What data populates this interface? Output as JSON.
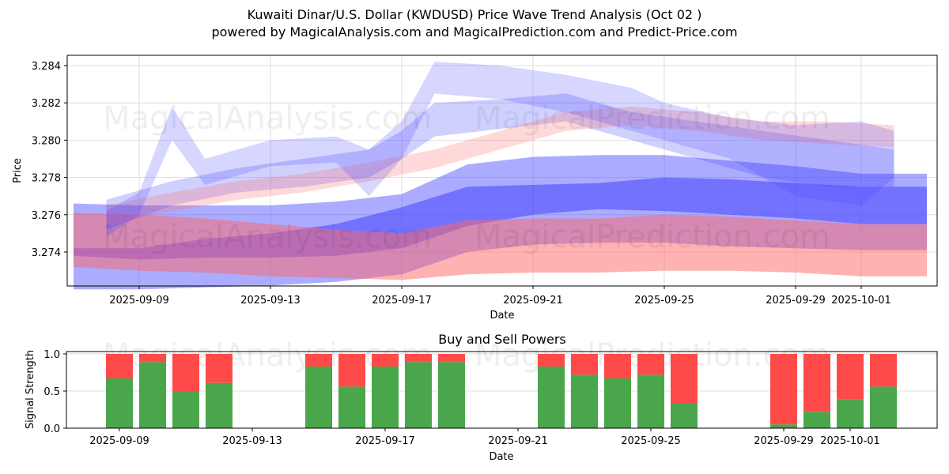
{
  "header": {
    "title": "Kuwaiti Dinar/U.S. Dollar (KWDUSD) Price Wave Trend Analysis (Oct 02 )",
    "subtitle": "powered by MagicalAnalysis.com and MagicalPrediction.com and Predict-Price.com"
  },
  "watermarks": [
    "MagicalAnalysis.com",
    "MagicalPrediction.com"
  ],
  "chart_data": [
    {
      "type": "area",
      "title": "",
      "xlabel": "Date",
      "ylabel": "Price",
      "xlim": [
        "2025-09-06.8",
        "2025-10-03.3"
      ],
      "ylim": [
        3.2722,
        3.2846
      ],
      "grid": true,
      "xticks": [
        "2025-09-09",
        "2025-09-13",
        "2025-09-17",
        "2025-09-21",
        "2025-09-25",
        "2025-09-29",
        "2025-10-01"
      ],
      "yticks": [
        "3.274",
        "3.276",
        "3.278",
        "3.280",
        "3.282",
        "3.284"
      ],
      "colors": {
        "blue": "#4444ff",
        "red": "#ff6666"
      },
      "bands": [
        {
          "name": "blue-wide-lower",
          "color": "blue",
          "opacity": 0.45,
          "x": [
            "2025-09-07",
            "2025-09-09",
            "2025-09-11",
            "2025-09-13",
            "2025-09-15",
            "2025-09-17",
            "2025-09-19",
            "2025-09-21",
            "2025-09-23",
            "2025-09-25",
            "2025-09-27",
            "2025-09-29",
            "2025-10-01",
            "2025-10-03"
          ],
          "upper": [
            3.2766,
            3.2765,
            3.2765,
            3.2765,
            3.2767,
            3.2771,
            3.2787,
            3.2791,
            3.2792,
            3.2792,
            3.2789,
            3.2786,
            3.2782,
            3.2782
          ],
          "lower": [
            3.272,
            3.272,
            3.2721,
            3.2722,
            3.2724,
            3.2728,
            3.274,
            3.2744,
            3.2745,
            3.2745,
            3.2743,
            3.2742,
            3.2741,
            3.2741
          ]
        },
        {
          "name": "blue-core",
          "color": "blue",
          "opacity": 0.55,
          "x": [
            "2025-09-07",
            "2025-09-09",
            "2025-09-11",
            "2025-09-13",
            "2025-09-15",
            "2025-09-17",
            "2025-09-19",
            "2025-09-21",
            "2025-09-23",
            "2025-09-25",
            "2025-09-27",
            "2025-09-29",
            "2025-10-01",
            "2025-10-03"
          ],
          "upper": [
            3.2742,
            3.2742,
            3.2747,
            3.275,
            3.2755,
            3.2764,
            3.2775,
            3.2776,
            3.2777,
            3.278,
            3.2779,
            3.2777,
            3.2775,
            3.2775
          ],
          "lower": [
            3.2738,
            3.2736,
            3.2737,
            3.2737,
            3.2738,
            3.2742,
            3.2754,
            3.276,
            3.2763,
            3.2762,
            3.276,
            3.2758,
            3.2755,
            3.2755
          ]
        },
        {
          "name": "red-wide-lower",
          "color": "red",
          "opacity": 0.5,
          "x": [
            "2025-09-07",
            "2025-09-09",
            "2025-09-11",
            "2025-09-13",
            "2025-09-15",
            "2025-09-17",
            "2025-09-19",
            "2025-09-21",
            "2025-09-23",
            "2025-09-25",
            "2025-09-27",
            "2025-09-29",
            "2025-10-01",
            "2025-10-03"
          ],
          "upper": [
            3.2761,
            3.276,
            3.2758,
            3.2755,
            3.2752,
            3.275,
            3.2757,
            3.2758,
            3.2758,
            3.276,
            3.2759,
            3.2757,
            3.2755,
            3.2755
          ],
          "lower": [
            3.2732,
            3.273,
            3.2729,
            3.2727,
            3.2726,
            3.2725,
            3.2728,
            3.2729,
            3.2729,
            3.273,
            3.273,
            3.2729,
            3.2727,
            3.2727
          ]
        },
        {
          "name": "blue-stream-mid",
          "color": "blue",
          "opacity": 0.25,
          "x": [
            "2025-09-08",
            "2025-09-10",
            "2025-09-12",
            "2025-09-14",
            "2025-09-16",
            "2025-09-17",
            "2025-09-18",
            "2025-09-20",
            "2025-09-22",
            "2025-09-24",
            "2025-09-26",
            "2025-09-28",
            "2025-09-30",
            "2025-10-02"
          ],
          "upper": [
            3.2768,
            3.2778,
            3.2785,
            3.279,
            3.2795,
            3.2805,
            3.282,
            3.2822,
            3.2825,
            3.2815,
            3.281,
            3.2805,
            3.28,
            3.2795
          ],
          "lower": [
            3.2752,
            3.2765,
            3.2772,
            3.2775,
            3.278,
            3.279,
            3.2802,
            3.2806,
            3.281,
            3.28,
            3.279,
            3.278,
            3.2775,
            3.2775
          ]
        },
        {
          "name": "red-stream-mid",
          "color": "red",
          "opacity": 0.25,
          "x": [
            "2025-09-08",
            "2025-09-10",
            "2025-09-12",
            "2025-09-14",
            "2025-09-16",
            "2025-09-18",
            "2025-09-20",
            "2025-09-22",
            "2025-09-24",
            "2025-09-26",
            "2025-09-28",
            "2025-09-30",
            "2025-10-02"
          ],
          "upper": [
            3.2765,
            3.2772,
            3.2778,
            3.2782,
            3.2788,
            3.2795,
            3.2805,
            3.2815,
            3.2818,
            3.2815,
            3.281,
            3.281,
            3.2808
          ],
          "lower": [
            3.2755,
            3.2762,
            3.2768,
            3.2772,
            3.2778,
            3.2785,
            3.2795,
            3.2805,
            3.2808,
            3.2805,
            3.28,
            3.2798,
            3.2796
          ]
        },
        {
          "name": "blue-stream-high",
          "color": "blue",
          "opacity": 0.22,
          "x": [
            "2025-09-08",
            "2025-09-09",
            "2025-09-10",
            "2025-09-11",
            "2025-09-13",
            "2025-09-15",
            "2025-09-16",
            "2025-09-17",
            "2025-09-18",
            "2025-09-20",
            "2025-09-22",
            "2025-09-24",
            "2025-09-25",
            "2025-09-27",
            "2025-09-29",
            "2025-10-01",
            "2025-10-02"
          ],
          "upper": [
            3.2762,
            3.2772,
            3.2818,
            3.279,
            3.28,
            3.2802,
            3.2795,
            3.281,
            3.2842,
            3.284,
            3.2835,
            3.2828,
            3.282,
            3.2812,
            3.2808,
            3.281,
            3.2805
          ],
          "lower": [
            3.2748,
            3.276,
            3.28,
            3.2776,
            3.2786,
            3.2788,
            3.277,
            3.279,
            3.2825,
            3.2822,
            3.2815,
            3.2805,
            3.28,
            3.279,
            3.277,
            3.2765,
            3.278
          ]
        }
      ]
    },
    {
      "type": "bar",
      "title": "Buy and Sell Powers",
      "xlabel": "Date",
      "ylabel": "Signal Strength",
      "ylim": [
        0,
        1.05
      ],
      "yticks": [
        "0.0",
        "0.5",
        "1.0"
      ],
      "xticks": [
        "2025-09-09",
        "2025-09-13",
        "2025-09-17",
        "2025-09-21",
        "2025-09-25",
        "2025-09-29",
        "2025-10-01"
      ],
      "grid": true,
      "colors": {
        "buy": "#4aa64a",
        "sell": "#ff4a4a"
      },
      "categories": [
        "2025-09-09",
        "2025-09-10",
        "2025-09-11",
        "2025-09-12",
        "2025-09-15",
        "2025-09-16",
        "2025-09-17",
        "2025-09-18",
        "2025-09-19",
        "2025-09-22",
        "2025-09-23",
        "2025-09-24",
        "2025-09-25",
        "2025-09-26",
        "2025-09-29",
        "2025-09-30",
        "2025-10-01",
        "2025-10-02"
      ],
      "series": [
        {
          "name": "Buy",
          "values": [
            0.67,
            0.89,
            0.5,
            0.61,
            0.83,
            0.56,
            0.83,
            0.89,
            0.89,
            0.83,
            0.72,
            0.67,
            0.72,
            0.33,
            0.05,
            0.22,
            0.39,
            0.56
          ]
        },
        {
          "name": "Sell",
          "values": [
            0.33,
            0.11,
            0.5,
            0.39,
            0.17,
            0.44,
            0.17,
            0.11,
            0.11,
            0.17,
            0.28,
            0.33,
            0.28,
            0.67,
            0.95,
            0.78,
            0.61,
            0.44
          ]
        }
      ]
    }
  ]
}
